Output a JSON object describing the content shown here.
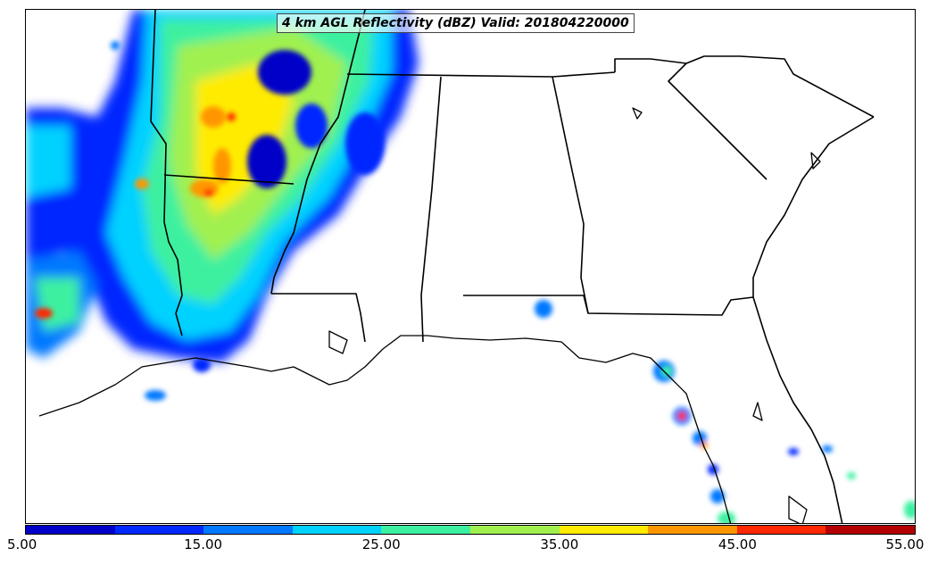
{
  "title": "4 km AGL Reflectivity (dBZ) Valid: 201804220000",
  "colorbar": {
    "colors": [
      "#0000c8",
      "#0028ff",
      "#0078ff",
      "#00d2ff",
      "#3cf0a0",
      "#a0f050",
      "#ffeb00",
      "#ff9600",
      "#ff2800",
      "#b40000"
    ],
    "tick_labels": [
      "5.00",
      "15.00",
      "25.00",
      "35.00",
      "45.00",
      "55.00"
    ]
  },
  "map_layers": {
    "boundaries": "state-lines-and-coastlines",
    "field": "radar-reflectivity-dbz"
  }
}
